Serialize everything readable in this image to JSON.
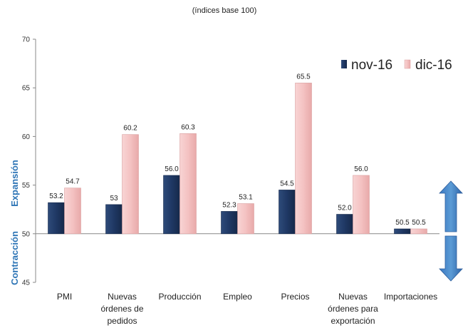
{
  "chart_data": {
    "type": "bar",
    "title": "",
    "subtitle": "(índices base 100)",
    "categories": [
      [
        "PMI"
      ],
      [
        "Nuevas",
        "órdenes de",
        "pedidos"
      ],
      [
        "Producción"
      ],
      [
        "Empleo"
      ],
      [
        "Precios"
      ],
      [
        "Nuevas",
        "órdenes para",
        "exportación"
      ],
      [
        "Importaciones"
      ]
    ],
    "series": [
      {
        "name": "nov-16",
        "values": [
          53.2,
          53,
          56.0,
          52.3,
          54.5,
          52.0,
          50.5
        ],
        "labels": [
          "53.2",
          "53",
          "56.0",
          "52.3",
          "54.5",
          "52.0",
          "50.5"
        ],
        "color": "#1F3864"
      },
      {
        "name": "dic-16",
        "values": [
          54.7,
          60.2,
          60.3,
          53.1,
          65.5,
          56.0,
          50.5
        ],
        "labels": [
          "54.7",
          "60.2",
          "60.3",
          "53.1",
          "65.5",
          "56.0",
          "50.5"
        ],
        "color": "#F4C2C2"
      }
    ],
    "ylim": [
      45,
      70
    ],
    "yticks": [
      45,
      50,
      55,
      60,
      65,
      70
    ],
    "baseline": 50,
    "legend_position": "top-right",
    "side_labels": {
      "upper": "Expansión",
      "lower": "Contracción"
    },
    "grid": false
  }
}
